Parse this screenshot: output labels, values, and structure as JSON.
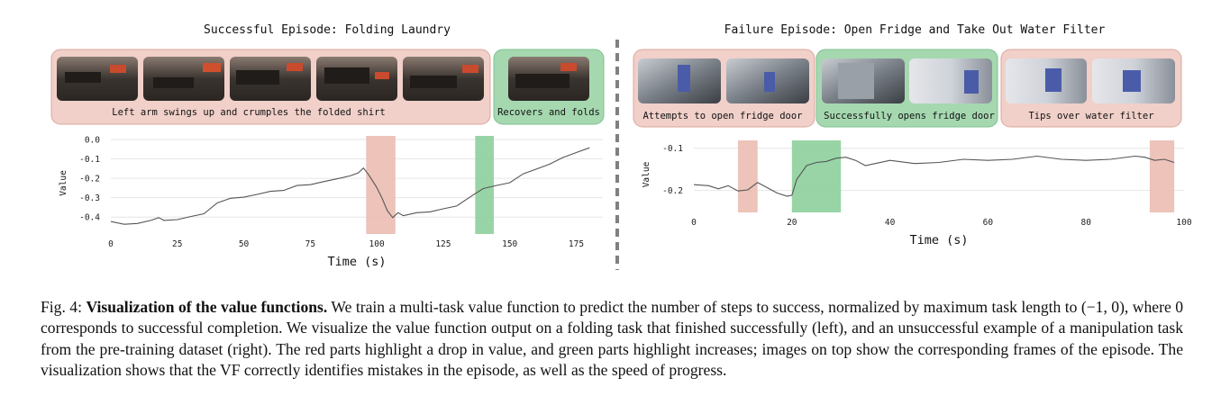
{
  "figure": {
    "left": {
      "title": "Successful Episode: Folding Laundry",
      "panel_red_label": "Left arm swings up and crumples the folded shirt",
      "panel_green_label": "Recovers and folds"
    },
    "right": {
      "title": "Failure Episode: Open Fridge and Take Out Water Filter",
      "panel1_label": "Attempts to open fridge door",
      "panel2_label": "Successfully opens fridge door",
      "panel3_label": "Tips over water filter"
    },
    "colors": {
      "red_panel": "#f0d0c9",
      "red_panel_border": "#dca79e",
      "green_panel": "#a6d8b0",
      "green_panel_border": "#7fbf8f",
      "red_highlight": "#ebbcb3",
      "green_highlight": "#8ecf9c",
      "line": "#555555"
    }
  },
  "chart_data": [
    {
      "type": "line",
      "xlabel": "Time (s)",
      "ylabel": "Value",
      "xlim": [
        0,
        185
      ],
      "ylim": [
        -0.45,
        0.0
      ],
      "xticks": [
        0,
        25,
        50,
        75,
        100,
        125,
        150,
        175
      ],
      "yticks": [
        0.0,
        -0.1,
        -0.2,
        -0.3,
        -0.4
      ],
      "ytick_labels": [
        "0.0",
        "-0.1",
        "-0.2",
        "-0.3",
        "-0.4"
      ],
      "highlights": [
        {
          "type": "drop",
          "color": "red",
          "x": [
            96,
            107
          ]
        },
        {
          "type": "increase",
          "color": "green",
          "x": [
            137,
            144
          ]
        }
      ],
      "series": [
        {
          "x": [
            0,
            5,
            10,
            15,
            18,
            20,
            25,
            30,
            35,
            40,
            45,
            50,
            55,
            60,
            65,
            70,
            75,
            80,
            85,
            90,
            93,
            95,
            97,
            100,
            102,
            104,
            106,
            108,
            110,
            115,
            120,
            125,
            130,
            135,
            140,
            145,
            150,
            155,
            160,
            165,
            170,
            175,
            180
          ],
          "y": [
            -0.42,
            -0.44,
            -0.43,
            -0.42,
            -0.4,
            -0.42,
            -0.41,
            -0.4,
            -0.38,
            -0.33,
            -0.3,
            -0.3,
            -0.28,
            -0.27,
            -0.26,
            -0.24,
            -0.23,
            -0.22,
            -0.2,
            -0.19,
            -0.17,
            -0.15,
            -0.18,
            -0.25,
            -0.3,
            -0.37,
            -0.4,
            -0.38,
            -0.39,
            -0.38,
            -0.37,
            -0.36,
            -0.34,
            -0.3,
            -0.25,
            -0.24,
            -0.22,
            -0.18,
            -0.15,
            -0.13,
            -0.09,
            -0.07,
            -0.04
          ]
        }
      ]
    },
    {
      "type": "line",
      "xlabel": "Time (s)",
      "ylabel": "Value",
      "xlim": [
        0,
        100
      ],
      "ylim": [
        -0.235,
        -0.09
      ],
      "xticks": [
        0,
        20,
        40,
        60,
        80,
        100
      ],
      "yticks": [
        -0.1,
        -0.2
      ],
      "ytick_labels": [
        "-0.1",
        "-0.2"
      ],
      "highlights": [
        {
          "type": "drop",
          "color": "red",
          "x": [
            9,
            13
          ]
        },
        {
          "type": "increase",
          "color": "green",
          "x": [
            20,
            30
          ]
        },
        {
          "type": "drop",
          "color": "red",
          "x": [
            93,
            98
          ]
        }
      ],
      "series": [
        {
          "x": [
            0,
            3,
            5,
            7,
            9,
            11,
            13,
            15,
            17,
            19,
            20,
            21,
            23,
            25,
            27,
            29,
            31,
            33,
            35,
            40,
            45,
            50,
            55,
            60,
            65,
            70,
            75,
            80,
            85,
            90,
            92,
            94,
            96,
            98
          ],
          "y": [
            -0.185,
            -0.19,
            -0.195,
            -0.19,
            -0.2,
            -0.2,
            -0.18,
            -0.195,
            -0.205,
            -0.215,
            -0.21,
            -0.175,
            -0.14,
            -0.135,
            -0.13,
            -0.125,
            -0.12,
            -0.13,
            -0.14,
            -0.13,
            -0.135,
            -0.135,
            -0.125,
            -0.13,
            -0.125,
            -0.12,
            -0.125,
            -0.13,
            -0.125,
            -0.12,
            -0.12,
            -0.13,
            -0.125,
            -0.135
          ]
        }
      ]
    }
  ],
  "caption": {
    "prefix": "Fig. 4: ",
    "bold": "Visualization of the value functions.",
    "text": " We train a multi-task value function to predict the number of steps to success, normalized by maximum task length to (−1, 0), where 0 corresponds to successful completion. We visualize the value function output on a folding task that finished successfully (left), and an unsuccessful example of a manipulation task from the pre-training dataset (right). The red parts highlight a drop in value, and green parts highlight increases; images on top show the corresponding frames of the episode. The visualization shows that the VF correctly identifies mistakes in the episode, as well as the speed of progress."
  }
}
